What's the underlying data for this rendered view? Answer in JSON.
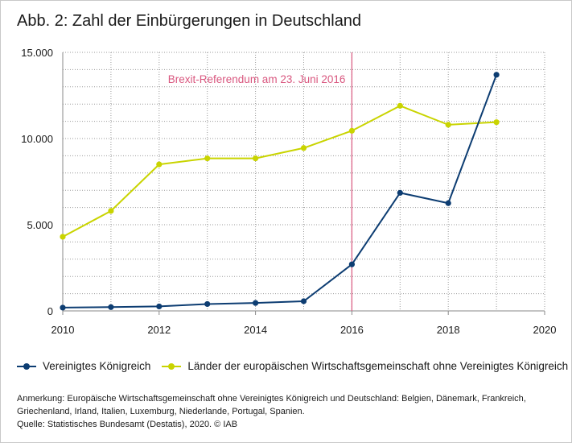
{
  "title": "Abb. 2: Zahl der Einbürgerungen in Deutschland",
  "notes": {
    "annotation": "Anmerkung: Europäische Wirtschaftsgemeinschaft ohne Vereinigtes Königreich und Deutschland: Belgien, Dänemark, Frankreich, Griechenland, Irland, Italien, Luxemburg, Niederlande, Portugal, Spanien.",
    "source": "Quelle: Statistisches Bundesamt (Destatis), 2020. © IAB"
  },
  "chart_data": {
    "type": "line",
    "xlim": [
      2010,
      2020
    ],
    "ylim": [
      0,
      15000
    ],
    "x_ticks": [
      2010,
      2012,
      2014,
      2016,
      2018,
      2020
    ],
    "x_tick_labels": [
      "2010",
      "2012",
      "2014",
      "2016",
      "2018",
      "2020"
    ],
    "y_ticks": [
      0,
      5000,
      10000,
      15000
    ],
    "y_tick_labels": [
      "0",
      "5.000",
      "10.000",
      "15.000"
    ],
    "grid": true,
    "legend_position": "bottom",
    "x": [
      2010,
      2011,
      2012,
      2013,
      2014,
      2015,
      2016,
      2017,
      2018,
      2019
    ],
    "series": [
      {
        "name": "Vereinigtes Königreich",
        "color": "#0d3d72",
        "values": [
          190,
          220,
          260,
          400,
          460,
          560,
          2700,
          6850,
          6250,
          13700
        ]
      },
      {
        "name": "Länder der europäischen Wirtschaftsgemeinschaft ohne Vereinigtes Königreich",
        "color": "#c9d400",
        "values": [
          4300,
          5800,
          8500,
          8850,
          8850,
          9450,
          10450,
          11900,
          10800,
          10950
        ]
      }
    ],
    "annotations": [
      {
        "x": 2016,
        "text": "Brexit-Referendum am 23. Juni 2016",
        "color": "#d9577f"
      }
    ]
  }
}
